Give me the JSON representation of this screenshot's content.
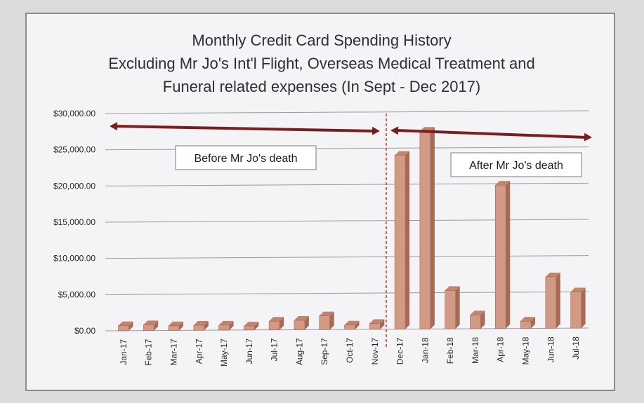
{
  "chart_data": {
    "type": "bar",
    "title": [
      "Monthly Credit Card Spending History",
      "Excluding Mr Jo's Int'l Flight, Overseas Medical Treatment and",
      "Funeral related expenses (In Sept - Dec 2017)"
    ],
    "categories": [
      "Jan-17",
      "Feb-17",
      "Mar-17",
      "Apr-17",
      "May-17",
      "Jun-17",
      "Jul-17",
      "Aug-17",
      "Sep-17",
      "Oct-17",
      "Nov-17",
      "Dec-17",
      "Jan-18",
      "Feb-18",
      "Mar-18",
      "Apr-18",
      "May-18",
      "Jun-18",
      "Jul-18"
    ],
    "values": [
      700,
      800,
      650,
      700,
      700,
      550,
      1200,
      1300,
      1900,
      600,
      800,
      24000,
      27300,
      5300,
      1900,
      19800,
      1000,
      7100,
      5000
    ],
    "ylim": [
      0,
      30000
    ],
    "yticks": [
      "$0.00",
      "$5,000.00",
      "$10,000.00",
      "$15,000.00",
      "$20,000.00",
      "$25,000.00",
      "$30,000.00"
    ],
    "ytick_values": [
      0,
      5000,
      10000,
      15000,
      20000,
      25000,
      30000
    ],
    "grid": true,
    "annotations": {
      "before": "Before Mr Jo's death",
      "after": "After Mr Jo's death"
    },
    "colors": {
      "bar_front": "#d29a84",
      "bar_side": "#a86a55",
      "bar_top": "#c08470",
      "arrow": "#7a1f1f",
      "divider": "#c0392b",
      "grid": "#9a9aa0"
    }
  }
}
